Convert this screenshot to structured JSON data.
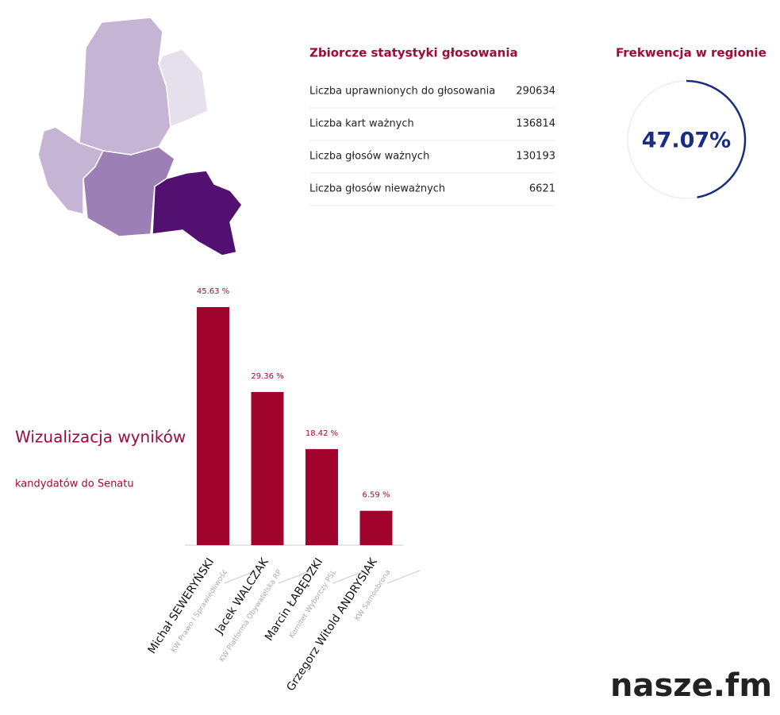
{
  "stats": {
    "title": "Zbiorcze statystyki głosowania",
    "rows": [
      [
        "Liczba uprawnionych do głosowania",
        "290634"
      ],
      [
        "Liczba kart ważnych",
        "136814"
      ],
      [
        "Liczba głosów ważnych",
        "130193"
      ],
      [
        "Liczba głosów nieważnych",
        "6621"
      ]
    ]
  },
  "turnout": {
    "title": "Frekwencja w regionie",
    "value": 47.07,
    "value_label": "47.07%",
    "color": "#1a2e80"
  },
  "chart_data": {
    "type": "bar",
    "title": "Wizualizacja wyników",
    "subtitle": "kandydatów do Senatu",
    "categories": [
      "Michał SEWERYŃSKI",
      "Jacek WALCZAK",
      "Marcin ŁABĘDZKI",
      "Grzegorz Witold ANDRYSIAK"
    ],
    "category_subtitles": [
      "KW Prawo i Sprawiedliwość",
      "KW Platforma Obywatelska RP",
      "Komitet Wyborczy PSL",
      "KW Samoobrona"
    ],
    "values": [
      45.63,
      29.36,
      18.42,
      6.59
    ],
    "value_labels": [
      "45.63 %",
      "29.36 %",
      "18.42 %",
      "6.59 %"
    ],
    "color": "#a0042c"
  },
  "logo": {
    "text": "nasze.fm"
  }
}
